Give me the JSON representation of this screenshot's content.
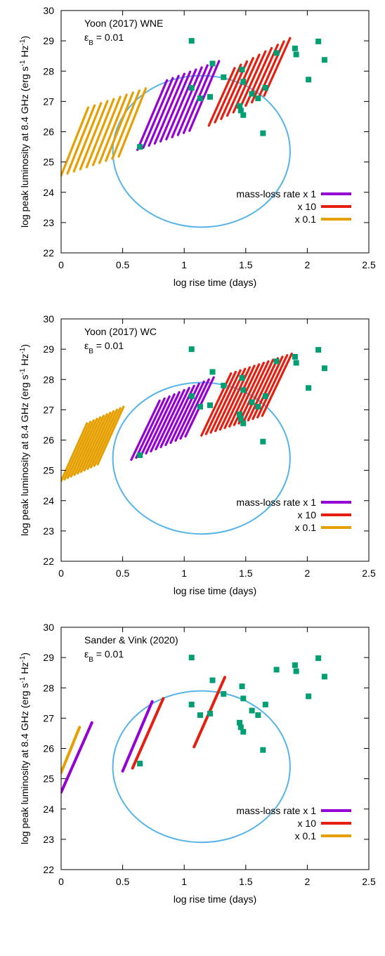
{
  "colors": {
    "purple": "#9400d3",
    "red": "#e51e10",
    "orange": "#e69f00",
    "circle": "#56b4e9",
    "points": "#009e73"
  },
  "chart_data": [
    {
      "type": "line",
      "title_line1": "Yoon (2017) WNE",
      "title_line2_prefix": "ε",
      "title_line2_sub": "B",
      "title_line2_suffix": " = 0.01",
      "xlabel": "log rise time (days)",
      "ylabel": "log peak luminosity at 8.4 GHz (erg s-1 Hz-1)",
      "ylabel_parts": {
        "a": "log peak luminosity at 8.4 GHz (erg s",
        "b": "-1",
        "c": " Hz",
        "d": "-1",
        "e": ")"
      },
      "xlim": [
        0,
        2.5
      ],
      "ylim": [
        22,
        30
      ],
      "grid": false,
      "legend_position": "bottom-right",
      "xticks": [
        "0",
        "0.5",
        "1",
        "1.5",
        "2",
        "2.5"
      ],
      "yticks": [
        "22",
        "23",
        "24",
        "25",
        "26",
        "27",
        "28",
        "29",
        "30"
      ],
      "legend": [
        {
          "label": "mass-loss rate x 1",
          "color": "#9400d3"
        },
        {
          "label": "x 10",
          "color": "#e51e10"
        },
        {
          "label": "x 0.1",
          "color": "#e69f00"
        }
      ],
      "band_series": [
        {
          "name": "mass-loss rate x 1",
          "color": "#9400d3",
          "start": [
            0.62,
            25.4
          ],
          "end": [
            0.86,
            27.7
          ],
          "count": 10,
          "step": [
            0.047,
            0.07
          ]
        },
        {
          "name": "x 10",
          "color": "#e51e10",
          "start": [
            1.2,
            26.2
          ],
          "end": [
            1.41,
            28.1
          ],
          "count": 10,
          "step": [
            0.05,
            0.11
          ]
        },
        {
          "name": "x 0.1",
          "color": "#e69f00",
          "start": [
            0.0,
            24.55
          ],
          "end": [
            0.22,
            26.8
          ],
          "count": 10,
          "step": [
            0.052,
            0.07
          ]
        }
      ],
      "circle": {
        "center": [
          1.14,
          25.35
        ],
        "radius_x": 0.72,
        "radius_y": 2.5
      },
      "observed_points": [
        [
          0.64,
          25.5
        ],
        [
          1.06,
          29.0
        ],
        [
          1.06,
          27.45
        ],
        [
          1.13,
          27.1
        ],
        [
          1.21,
          27.15
        ],
        [
          1.23,
          28.25
        ],
        [
          1.32,
          27.8
        ],
        [
          1.45,
          26.85
        ],
        [
          1.46,
          26.7
        ],
        [
          1.47,
          28.05
        ],
        [
          1.48,
          26.55
        ],
        [
          1.48,
          27.65
        ],
        [
          1.55,
          27.25
        ],
        [
          1.6,
          27.1
        ],
        [
          1.64,
          25.95
        ],
        [
          1.66,
          27.45
        ],
        [
          1.75,
          28.6
        ],
        [
          1.9,
          28.75
        ],
        [
          1.91,
          28.55
        ],
        [
          2.01,
          27.72
        ],
        [
          2.09,
          28.98
        ],
        [
          2.14,
          28.37
        ]
      ]
    },
    {
      "type": "line",
      "title_line1": "Yoon (2017) WC",
      "title_line2_prefix": "ε",
      "title_line2_sub": "B",
      "title_line2_suffix": " = 0.01",
      "xlabel": "log rise time (days)",
      "ylabel": "log peak luminosity at 8.4 GHz (erg s-1 Hz-1)",
      "ylabel_parts": {
        "a": "log peak luminosity at 8.4 GHz (erg s",
        "b": "-1",
        "c": " Hz",
        "d": "-1",
        "e": ")"
      },
      "xlim": [
        0,
        2.5
      ],
      "ylim": [
        22,
        30
      ],
      "grid": false,
      "legend_position": "bottom-right",
      "xticks": [
        "0",
        "0.5",
        "1",
        "1.5",
        "2",
        "2.5"
      ],
      "yticks": [
        "22",
        "23",
        "24",
        "25",
        "26",
        "27",
        "28",
        "29",
        "30"
      ],
      "legend": [
        {
          "label": "mass-loss rate x 1",
          "color": "#9400d3"
        },
        {
          "label": "x 10",
          "color": "#e51e10"
        },
        {
          "label": "x 0.1",
          "color": "#e69f00"
        }
      ],
      "band_series": [
        {
          "name": "mass-loss rate x 1",
          "color": "#9400d3",
          "start": [
            0.57,
            25.35
          ],
          "end": [
            0.8,
            27.3
          ],
          "count": 12,
          "step": [
            0.04,
            0.07
          ]
        },
        {
          "name": "x 10",
          "color": "#e51e10",
          "start": [
            1.14,
            26.15
          ],
          "end": [
            1.38,
            28.2
          ],
          "count": 14,
          "step": [
            0.038,
            0.05
          ]
        },
        {
          "name": "x 0.1",
          "color": "#e69f00",
          "start": [
            0.0,
            24.65
          ],
          "end": [
            0.21,
            26.55
          ],
          "count": 12,
          "step": [
            0.027,
            0.05
          ]
        }
      ],
      "circle": {
        "center": [
          1.14,
          25.4
        ],
        "radius_x": 0.72,
        "radius_y": 2.5
      },
      "observed_points": [
        [
          0.64,
          25.5
        ],
        [
          1.06,
          29.0
        ],
        [
          1.06,
          27.45
        ],
        [
          1.13,
          27.1
        ],
        [
          1.21,
          27.15
        ],
        [
          1.23,
          28.25
        ],
        [
          1.32,
          27.8
        ],
        [
          1.45,
          26.85
        ],
        [
          1.46,
          26.7
        ],
        [
          1.47,
          28.05
        ],
        [
          1.48,
          26.55
        ],
        [
          1.48,
          27.65
        ],
        [
          1.55,
          27.25
        ],
        [
          1.6,
          27.1
        ],
        [
          1.64,
          25.95
        ],
        [
          1.66,
          27.45
        ],
        [
          1.75,
          28.6
        ],
        [
          1.9,
          28.75
        ],
        [
          1.91,
          28.55
        ],
        [
          2.01,
          27.72
        ],
        [
          2.09,
          28.98
        ],
        [
          2.14,
          28.37
        ]
      ]
    },
    {
      "type": "line",
      "title_line1": "Sander & Vink (2020)",
      "title_line2_prefix": "ε",
      "title_line2_sub": "B",
      "title_line2_suffix": " = 0.01",
      "xlabel": "log rise time (days)",
      "ylabel": "log peak luminosity at 8.4 GHz (erg s-1 Hz-1)",
      "ylabel_parts": {
        "a": "log peak luminosity at 8.4 GHz (erg s",
        "b": "-1",
        "c": " Hz",
        "d": "-1",
        "e": ")"
      },
      "xlim": [
        0,
        2.5
      ],
      "ylim": [
        22,
        30
      ],
      "grid": false,
      "legend_position": "bottom-right",
      "xticks": [
        "0",
        "0.5",
        "1",
        "1.5",
        "2",
        "2.5"
      ],
      "yticks": [
        "22",
        "23",
        "24",
        "25",
        "26",
        "27",
        "28",
        "29",
        "30"
      ],
      "legend": [
        {
          "label": "mass-loss rate x 1",
          "color": "#9400d3"
        },
        {
          "label": "x 10",
          "color": "#e51e10"
        },
        {
          "label": "x 0.1",
          "color": "#e69f00"
        }
      ],
      "line_series": [
        {
          "name": "mass-loss rate x 1 (a)",
          "color": "#9400d3",
          "points": [
            [
              0.0,
              24.55
            ],
            [
              0.25,
              26.85
            ]
          ]
        },
        {
          "name": "mass-loss rate x 1 (b)",
          "color": "#9400d3",
          "points": [
            [
              0.5,
              25.25
            ],
            [
              0.74,
              27.55
            ]
          ]
        },
        {
          "name": "x 10 (a)",
          "color": "#e51e10",
          "points": [
            [
              0.58,
              25.35
            ],
            [
              0.83,
              27.65
            ]
          ]
        },
        {
          "name": "x 10 (b)",
          "color": "#e51e10",
          "points": [
            [
              1.08,
              26.05
            ],
            [
              1.33,
              28.35
            ]
          ]
        },
        {
          "name": "x 0.1",
          "color": "#e69f00",
          "points": [
            [
              0.0,
              25.2
            ],
            [
              0.15,
              26.7
            ]
          ]
        }
      ],
      "circle": {
        "center": [
          1.14,
          25.4
        ],
        "radius_x": 0.72,
        "radius_y": 2.5
      },
      "observed_points": [
        [
          0.64,
          25.5
        ],
        [
          1.06,
          29.0
        ],
        [
          1.06,
          27.45
        ],
        [
          1.13,
          27.1
        ],
        [
          1.21,
          27.15
        ],
        [
          1.23,
          28.25
        ],
        [
          1.32,
          27.8
        ],
        [
          1.45,
          26.85
        ],
        [
          1.46,
          26.7
        ],
        [
          1.47,
          28.05
        ],
        [
          1.48,
          26.55
        ],
        [
          1.48,
          27.65
        ],
        [
          1.55,
          27.25
        ],
        [
          1.6,
          27.1
        ],
        [
          1.64,
          25.95
        ],
        [
          1.66,
          27.45
        ],
        [
          1.75,
          28.6
        ],
        [
          1.9,
          28.75
        ],
        [
          1.91,
          28.55
        ],
        [
          2.01,
          27.72
        ],
        [
          2.09,
          28.98
        ],
        [
          2.14,
          28.37
        ]
      ]
    }
  ]
}
